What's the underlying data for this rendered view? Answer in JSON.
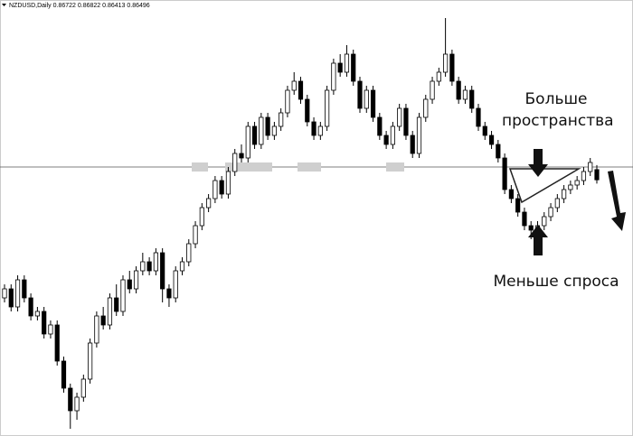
{
  "chart_data": {
    "type": "candlestick",
    "title": "NZDUSD,Daily  0.86722 0.86822 0.86413 0.86496",
    "annotations": [
      "Больше пространства",
      "Меньше спроса"
    ],
    "ylim": [
      0.8088,
      0.9028
    ],
    "level": 0.8678,
    "up_color": "#ffffff",
    "down_color": "#000000",
    "open": [
      0.8388,
      0.8408,
      0.8368,
      0.8428,
      0.8388,
      0.8348,
      0.8358,
      0.8308,
      0.8328,
      0.8248,
      0.8188,
      0.8138,
      0.8168,
      0.8208,
      0.8288,
      0.8348,
      0.8328,
      0.8388,
      0.8358,
      0.8428,
      0.8408,
      0.8448,
      0.8468,
      0.8448,
      0.8488,
      0.8408,
      0.8388,
      0.8448,
      0.8468,
      0.8508,
      0.8548,
      0.8588,
      0.8608,
      0.8648,
      0.8618,
      0.8668,
      0.8708,
      0.8698,
      0.8768,
      0.8728,
      0.8788,
      0.8748,
      0.8768,
      0.8798,
      0.8848,
      0.8868,
      0.8828,
      0.8778,
      0.8748,
      0.8768,
      0.8848,
      0.8908,
      0.8888,
      0.8928,
      0.8868,
      0.8808,
      0.8848,
      0.8788,
      0.8748,
      0.8728,
      0.8768,
      0.8808,
      0.8748,
      0.8708,
      0.8788,
      0.8828,
      0.8868,
      0.8888,
      0.8928,
      0.8868,
      0.8828,
      0.8848,
      0.8808,
      0.8768,
      0.8748,
      0.8728,
      0.8698,
      0.8628,
      0.8608,
      0.8578,
      0.8548,
      0.8538,
      0.8548,
      0.8568,
      0.8588,
      0.8608,
      0.8628,
      0.8638,
      0.8648,
      0.8668,
      0.86722
    ],
    "high": [
      0.8418,
      0.8418,
      0.8438,
      0.8438,
      0.8398,
      0.8368,
      0.8368,
      0.8338,
      0.8338,
      0.8258,
      0.8198,
      0.8178,
      0.8218,
      0.8298,
      0.8358,
      0.8368,
      0.8398,
      0.8418,
      0.8438,
      0.8448,
      0.8458,
      0.8488,
      0.8478,
      0.8498,
      0.8498,
      0.8418,
      0.8458,
      0.8478,
      0.8518,
      0.8558,
      0.8598,
      0.8618,
      0.8658,
      0.8658,
      0.8678,
      0.8718,
      0.8728,
      0.8778,
      0.8778,
      0.8798,
      0.8798,
      0.8778,
      0.8808,
      0.8858,
      0.8888,
      0.8878,
      0.8838,
      0.8788,
      0.8778,
      0.8858,
      0.8918,
      0.8928,
      0.8948,
      0.8938,
      0.8878,
      0.8858,
      0.8858,
      0.8798,
      0.8758,
      0.8778,
      0.8818,
      0.8818,
      0.8758,
      0.8798,
      0.8838,
      0.8878,
      0.8898,
      0.9008,
      0.8938,
      0.8878,
      0.8858,
      0.8858,
      0.8818,
      0.8778,
      0.8758,
      0.8738,
      0.8708,
      0.8638,
      0.8618,
      0.8588,
      0.8558,
      0.8558,
      0.8578,
      0.8598,
      0.8618,
      0.8638,
      0.8648,
      0.8658,
      0.8678,
      0.8698,
      0.86822
    ],
    "low": [
      0.8378,
      0.8358,
      0.8358,
      0.8378,
      0.8338,
      0.8338,
      0.8298,
      0.8298,
      0.8238,
      0.8178,
      0.8098,
      0.8118,
      0.8158,
      0.8198,
      0.8278,
      0.8318,
      0.8318,
      0.8348,
      0.8348,
      0.8398,
      0.8398,
      0.8438,
      0.8438,
      0.8438,
      0.8378,
      0.8368,
      0.8378,
      0.8438,
      0.8458,
      0.8498,
      0.8538,
      0.8578,
      0.8598,
      0.8608,
      0.8608,
      0.8658,
      0.8688,
      0.8688,
      0.8718,
      0.8718,
      0.8738,
      0.8738,
      0.8758,
      0.8788,
      0.8838,
      0.8818,
      0.8768,
      0.8738,
      0.8738,
      0.8758,
      0.8838,
      0.8878,
      0.8878,
      0.8858,
      0.8798,
      0.8798,
      0.8778,
      0.8738,
      0.8718,
      0.8718,
      0.8758,
      0.8738,
      0.8698,
      0.8698,
      0.8778,
      0.8818,
      0.8858,
      0.8878,
      0.8858,
      0.8818,
      0.8818,
      0.8798,
      0.8758,
      0.8738,
      0.8718,
      0.8688,
      0.8618,
      0.8598,
      0.8568,
      0.8538,
      0.8518,
      0.8528,
      0.8538,
      0.8558,
      0.8578,
      0.8598,
      0.8618,
      0.8628,
      0.8638,
      0.8658,
      0.86413
    ],
    "close": [
      0.8408,
      0.8368,
      0.8428,
      0.8388,
      0.8348,
      0.8358,
      0.8308,
      0.8328,
      0.8248,
      0.8188,
      0.8138,
      0.8168,
      0.8208,
      0.8288,
      0.8348,
      0.8328,
      0.8388,
      0.8358,
      0.8428,
      0.8408,
      0.8448,
      0.8468,
      0.8448,
      0.8488,
      0.8408,
      0.8388,
      0.8448,
      0.8468,
      0.8508,
      0.8548,
      0.8588,
      0.8608,
      0.8648,
      0.8618,
      0.8668,
      0.8708,
      0.8698,
      0.8768,
      0.8728,
      0.8788,
      0.8748,
      0.8768,
      0.8798,
      0.8848,
      0.8868,
      0.8828,
      0.8778,
      0.8748,
      0.8768,
      0.8848,
      0.8908,
      0.8888,
      0.8928,
      0.8868,
      0.8808,
      0.8848,
      0.8788,
      0.8748,
      0.8728,
      0.8768,
      0.8808,
      0.8748,
      0.8708,
      0.8788,
      0.8828,
      0.8868,
      0.8888,
      0.8928,
      0.8868,
      0.8828,
      0.8848,
      0.8808,
      0.8768,
      0.8748,
      0.8728,
      0.8698,
      0.8628,
      0.8608,
      0.8578,
      0.8548,
      0.8538,
      0.8548,
      0.8568,
      0.8588,
      0.8608,
      0.8628,
      0.8638,
      0.8648,
      0.8668,
      0.8688,
      0.86496
    ]
  }
}
